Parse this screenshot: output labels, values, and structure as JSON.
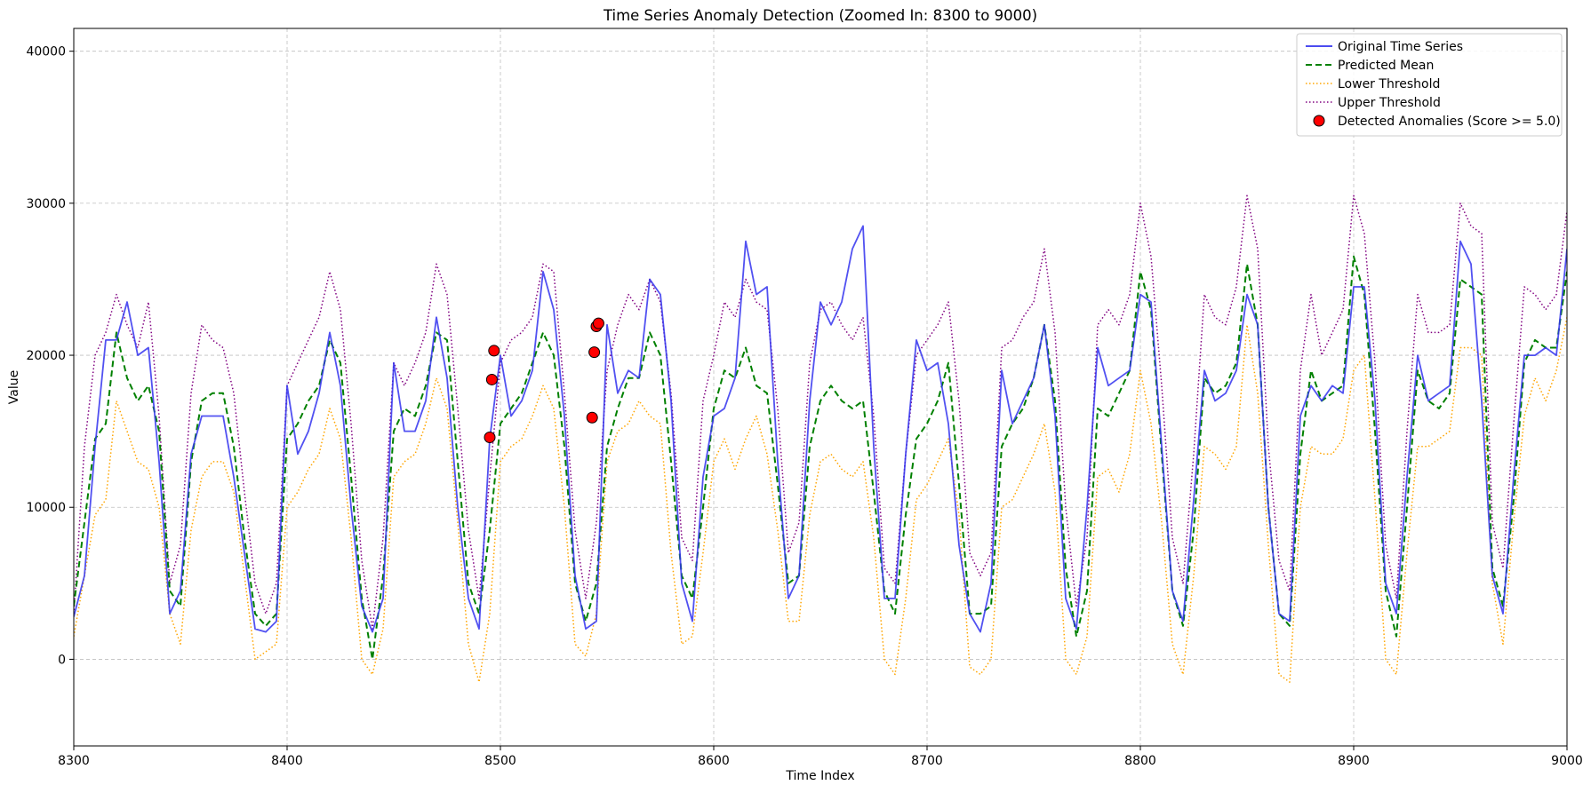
{
  "chart_data": {
    "type": "line",
    "title": "Time Series Anomaly Detection (Zoomed In: 8300 to 9000)",
    "xlabel": "Time Index",
    "ylabel": "Value",
    "xlim": [
      8300,
      9000
    ],
    "ylim": [
      -5700,
      41500
    ],
    "xticks": [
      8300,
      8400,
      8500,
      8600,
      8700,
      8800,
      8900,
      9000
    ],
    "xtick_labels": [
      "8300",
      "8400",
      "8500",
      "8600",
      "8700",
      "8800",
      "8900",
      "9000"
    ],
    "yticks": [
      0,
      10000,
      20000,
      30000,
      40000
    ],
    "ytick_labels": [
      "0",
      "10000",
      "20000",
      "30000",
      "40000"
    ],
    "grid": true,
    "legend_position": "top-right",
    "x": [
      8300,
      8305,
      8310,
      8315,
      8320,
      8325,
      8330,
      8335,
      8340,
      8345,
      8350,
      8355,
      8360,
      8365,
      8370,
      8375,
      8380,
      8385,
      8390,
      8395,
      8400,
      8405,
      8410,
      8415,
      8420,
      8425,
      8430,
      8435,
      8440,
      8445,
      8450,
      8455,
      8460,
      8465,
      8470,
      8475,
      8480,
      8485,
      8490,
      8495,
      8500,
      8505,
      8510,
      8515,
      8520,
      8525,
      8530,
      8535,
      8540,
      8545,
      8550,
      8555,
      8560,
      8565,
      8570,
      8575,
      8580,
      8585,
      8590,
      8595,
      8600,
      8605,
      8610,
      8615,
      8620,
      8625,
      8630,
      8635,
      8640,
      8645,
      8650,
      8655,
      8660,
      8665,
      8670,
      8675,
      8680,
      8685,
      8690,
      8695,
      8700,
      8705,
      8710,
      8715,
      8720,
      8725,
      8730,
      8735,
      8740,
      8745,
      8750,
      8755,
      8760,
      8765,
      8770,
      8775,
      8780,
      8785,
      8790,
      8795,
      8800,
      8805,
      8810,
      8815,
      8820,
      8825,
      8830,
      8835,
      8840,
      8845,
      8850,
      8855,
      8860,
      8865,
      8870,
      8875,
      8880,
      8885,
      8890,
      8895,
      8900,
      8905,
      8910,
      8915,
      8920,
      8925,
      8930,
      8935,
      8940,
      8945,
      8950,
      8955,
      8960,
      8965,
      8970,
      8975,
      8980,
      8985,
      8990,
      8995,
      9000
    ],
    "series": [
      {
        "name": "Original Time Series",
        "color": "#3333ee",
        "style": "solid",
        "values": [
          2800,
          5500,
          14000,
          21000,
          21000,
          23500,
          20000,
          20500,
          13000,
          3000,
          4500,
          13500,
          16000,
          16000,
          16000,
          12000,
          7000,
          2000,
          1800,
          2500,
          18000,
          13500,
          15000,
          17500,
          21500,
          18000,
          10000,
          3500,
          1800,
          4000,
          19500,
          15000,
          15000,
          17000,
          22500,
          18500,
          10000,
          4000,
          2000,
          14500,
          20000,
          16000,
          17000,
          19000,
          25500,
          23000,
          16000,
          5500,
          2000,
          2500,
          22000,
          17500,
          19000,
          18500,
          25000,
          24000,
          17000,
          5000,
          2500,
          12000,
          16000,
          16500,
          18500,
          27500,
          24000,
          24500,
          13000,
          4000,
          5500,
          17000,
          23500,
          22000,
          23500,
          27000,
          28500,
          14000,
          4000,
          4000,
          13500,
          21000,
          19000,
          19500,
          15500,
          7500,
          3000,
          1800,
          5000,
          19000,
          15500,
          17000,
          18500,
          22000,
          16000,
          4000,
          2000,
          10000,
          20500,
          18000,
          18500,
          19000,
          24000,
          23500,
          14000,
          4500,
          2500,
          10500,
          19000,
          17000,
          17500,
          19000,
          24000,
          22000,
          10000,
          3000,
          2500,
          16000,
          18000,
          17000,
          18000,
          17500,
          24500,
          24500,
          17000,
          5000,
          3000,
          12000,
          20000,
          17000,
          17500,
          18000,
          27500,
          26000,
          17000,
          5500,
          3000,
          12000,
          20000,
          20000,
          20500,
          20000,
          27000
        ]
      },
      {
        "name": "Predicted Mean",
        "color": "#008000",
        "style": "dashed",
        "values": [
          3500,
          9000,
          14500,
          15500,
          21500,
          18500,
          17000,
          18000,
          15000,
          4500,
          3500,
          13000,
          17000,
          17500,
          17500,
          14000,
          8000,
          3000,
          2200,
          3000,
          14500,
          15500,
          17000,
          18000,
          21000,
          19500,
          12000,
          4000,
          0,
          5500,
          15000,
          16500,
          16000,
          18000,
          21500,
          21000,
          13000,
          5000,
          3000,
          8500,
          15500,
          16500,
          17500,
          19500,
          21500,
          20000,
          14000,
          5000,
          2500,
          5000,
          14000,
          16500,
          18500,
          18500,
          21500,
          20000,
          13000,
          5500,
          4000,
          10000,
          16500,
          19000,
          18500,
          20500,
          18000,
          17500,
          11500,
          5000,
          5500,
          14000,
          17000,
          18000,
          17000,
          16500,
          17000,
          11000,
          4500,
          3000,
          9500,
          14500,
          15500,
          17000,
          19500,
          11500,
          3000,
          3000,
          3500,
          14000,
          15500,
          16500,
          18500,
          22000,
          17000,
          6000,
          1500,
          4500,
          16500,
          16000,
          17500,
          19000,
          25500,
          23000,
          13500,
          4500,
          2200,
          8500,
          18500,
          17500,
          18000,
          19500,
          26000,
          22000,
          10000,
          3000,
          2200,
          13500,
          19000,
          17000,
          17500,
          18000,
          26500,
          24000,
          15000,
          4500,
          1500,
          10000,
          19000,
          17000,
          16500,
          17500,
          25000,
          24500,
          24000,
          6000,
          3500,
          10500,
          19500,
          21000,
          20500,
          20500,
          25500
        ]
      },
      {
        "name": "Lower Threshold",
        "color": "#ffa500",
        "style": "dotted",
        "values": [
          1500,
          5500,
          9500,
          10500,
          17000,
          15000,
          13000,
          12500,
          10000,
          3000,
          1000,
          8500,
          12000,
          13000,
          13000,
          11000,
          5500,
          0,
          500,
          1000,
          10000,
          11000,
          12500,
          13500,
          16500,
          14500,
          8000,
          0,
          -1000,
          2000,
          12000,
          13000,
          13500,
          15500,
          18500,
          16500,
          9000,
          1000,
          -1500,
          3000,
          13000,
          14000,
          14500,
          16000,
          18000,
          16500,
          10000,
          1000,
          200,
          3000,
          13000,
          15000,
          15500,
          17000,
          16000,
          15500,
          7000,
          1000,
          1500,
          7000,
          13000,
          14500,
          12500,
          14500,
          16000,
          13500,
          8500,
          2500,
          2500,
          9500,
          13000,
          13500,
          12500,
          12000,
          13000,
          8000,
          0,
          -1000,
          4000,
          10500,
          11500,
          13000,
          14500,
          9500,
          -500,
          -1000,
          0,
          10000,
          10500,
          12000,
          13500,
          15500,
          11000,
          0,
          -1000,
          1500,
          12000,
          12500,
          11000,
          13500,
          19000,
          15500,
          9000,
          1000,
          -1000,
          5500,
          14000,
          13500,
          12500,
          14000,
          22000,
          17500,
          7500,
          -1000,
          -1500,
          10000,
          14000,
          13500,
          13500,
          14500,
          19000,
          20000,
          10500,
          0,
          -1000,
          7000,
          14000,
          14000,
          14500,
          15000,
          20500,
          20500,
          20000,
          5000,
          1000,
          9000,
          16000,
          18500,
          17000,
          19000,
          22500
        ]
      },
      {
        "name": "Upper Threshold",
        "color": "#800080",
        "style": "dotted",
        "values": [
          3000,
          14000,
          20000,
          21500,
          24000,
          22000,
          20500,
          23500,
          16000,
          5000,
          7500,
          17500,
          22000,
          21000,
          20500,
          17500,
          11000,
          5000,
          3000,
          5000,
          18000,
          19500,
          21000,
          22500,
          25500,
          23000,
          15500,
          6500,
          2000,
          8000,
          19500,
          18000,
          19500,
          21500,
          26000,
          24000,
          16500,
          8500,
          4000,
          12000,
          19500,
          21000,
          21500,
          22500,
          26000,
          25500,
          17500,
          8500,
          4000,
          9000,
          19000,
          22000,
          24000,
          23000,
          25000,
          23500,
          17500,
          8000,
          6500,
          17000,
          20000,
          23500,
          22500,
          25000,
          23500,
          23000,
          16500,
          7000,
          9000,
          19500,
          23000,
          23500,
          22000,
          21000,
          22500,
          16000,
          6000,
          5000,
          13500,
          20000,
          21000,
          22000,
          23500,
          17000,
          7000,
          5500,
          7000,
          20500,
          21000,
          22500,
          23500,
          27000,
          21500,
          10000,
          3500,
          8000,
          22000,
          23000,
          22000,
          24000,
          30000,
          26500,
          18000,
          8000,
          5000,
          13500,
          24000,
          22500,
          22000,
          24500,
          30500,
          27000,
          14000,
          6500,
          4500,
          19000,
          24000,
          20000,
          21500,
          23000,
          30500,
          28000,
          19500,
          7500,
          4000,
          15000,
          24000,
          21500,
          21500,
          22000,
          30000,
          28500,
          28000,
          9000,
          6000,
          15500,
          24500,
          24000,
          23000,
          24000,
          29500
        ]
      }
    ],
    "anomalies": {
      "name": "Detected Anomalies (Score >= 5.0)",
      "color": "#ff0000",
      "edgecolor": "#000000",
      "points": [
        {
          "x": 8495,
          "y": 14600
        },
        {
          "x": 8496,
          "y": 18400
        },
        {
          "x": 8497,
          "y": 20300
        },
        {
          "x": 8543,
          "y": 15900
        },
        {
          "x": 8544,
          "y": 20200
        },
        {
          "x": 8545,
          "y": 21900
        },
        {
          "x": 8546,
          "y": 22100
        }
      ]
    }
  }
}
